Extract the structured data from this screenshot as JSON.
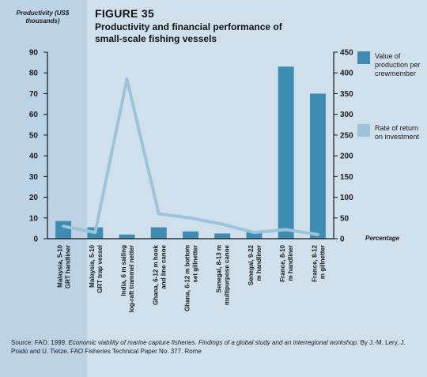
{
  "figure": {
    "label": "FIGURE 35",
    "title": "Productivity and financial performance of small-scale fishing vessels"
  },
  "source": {
    "prefix": "Source: FAO. 1999. ",
    "italic": "Economic viability of marine capture fisheries. Findings of a global study and an interregional workshop.",
    "suffix": " By J.-M. Lery, J. Prado and U. Tietze. FAO Fisheries Technical Paper No. 377. Rome"
  },
  "colors": {
    "bar": "#3f8cb3",
    "line": "#9dc3da",
    "axis": "#111111",
    "left_band": "#bcd3e5",
    "background": "#cfe0ec"
  },
  "chart_data": {
    "type": "bar",
    "ylabel": "Productivity (US$ thousands)",
    "y2label": "Percentage",
    "ylim": [
      0,
      90
    ],
    "y2lim": [
      0,
      450
    ],
    "yticks": [
      0,
      10,
      20,
      30,
      40,
      50,
      60,
      70,
      80,
      90
    ],
    "y2ticks": [
      0,
      50,
      100,
      150,
      200,
      250,
      300,
      350,
      400,
      450
    ],
    "grid": false,
    "legend_position": "right",
    "categories": [
      "Malaysia, 5-10 GRT handliner",
      "Malaysia, 5-10 GRT trap vessel",
      "India, 6 m sailing log-raft trammel netter",
      "Ghana, 6-12 m hook and line canoe",
      "Ghana, 6-12 m bottom set gillnetter",
      "Senegal, 8-13 m multipurpose canoe",
      "Senegal, 9-22 m handliner",
      "France, 8-10 m handliner",
      "France, 8-12 m gillnetter"
    ],
    "series": [
      {
        "name": "Value of production per crewmember",
        "kind": "bar",
        "axis": "left",
        "values": [
          8.5,
          5.5,
          2,
          5.5,
          3.5,
          2.5,
          3,
          83,
          70
        ]
      },
      {
        "name": "Rate of return on investment",
        "kind": "line",
        "axis": "right",
        "values": [
          30,
          15,
          385,
          60,
          50,
          35,
          15,
          22,
          10
        ]
      }
    ]
  }
}
